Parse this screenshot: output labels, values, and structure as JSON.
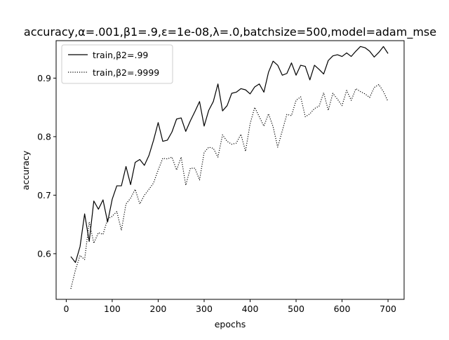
{
  "chart_data": {
    "type": "line",
    "title": "accuracy,α=.001,β1=.9,ε=1e-08,λ=.0,batchsize=500,model=adam_mse",
    "xlabel": "epochs",
    "ylabel": "accuracy",
    "xlim": [
      -22,
      735
    ],
    "ylim": [
      0.522,
      0.964
    ],
    "xticks": [
      0,
      100,
      200,
      300,
      400,
      500,
      600,
      700
    ],
    "yticks": [
      0.6,
      0.7,
      0.8,
      0.9
    ],
    "xtick_labels": [
      "0",
      "100",
      "200",
      "300",
      "400",
      "500",
      "600",
      "700"
    ],
    "ytick_labels": [
      "0.6",
      "0.7",
      "0.8",
      "0.9"
    ],
    "grid": false,
    "legend_position": "top-left",
    "x": [
      10,
      20,
      30,
      40,
      50,
      60,
      70,
      80,
      90,
      100,
      110,
      120,
      130,
      140,
      150,
      160,
      170,
      180,
      190,
      200,
      210,
      220,
      230,
      240,
      250,
      260,
      270,
      280,
      290,
      300,
      310,
      320,
      330,
      340,
      350,
      360,
      370,
      380,
      390,
      400,
      410,
      420,
      430,
      440,
      450,
      460,
      470,
      480,
      490,
      500,
      510,
      520,
      530,
      540,
      550,
      560,
      570,
      580,
      590,
      600,
      610,
      620,
      630,
      640,
      650,
      660,
      670,
      680,
      690,
      700
    ],
    "series": [
      {
        "name": "train,β2=.99",
        "style": "solid",
        "color": "#000000",
        "values": [
          0.595,
          0.585,
          0.612,
          0.668,
          0.621,
          0.69,
          0.676,
          0.692,
          0.654,
          0.693,
          0.716,
          0.716,
          0.749,
          0.718,
          0.756,
          0.761,
          0.751,
          0.768,
          0.794,
          0.824,
          0.792,
          0.794,
          0.808,
          0.83,
          0.832,
          0.809,
          0.827,
          0.843,
          0.86,
          0.818,
          0.845,
          0.86,
          0.89,
          0.844,
          0.853,
          0.874,
          0.876,
          0.882,
          0.88,
          0.873,
          0.885,
          0.89,
          0.876,
          0.91,
          0.929,
          0.922,
          0.905,
          0.908,
          0.926,
          0.905,
          0.922,
          0.92,
          0.897,
          0.922,
          0.915,
          0.907,
          0.93,
          0.938,
          0.94,
          0.937,
          0.943,
          0.937,
          0.946,
          0.954,
          0.952,
          0.946,
          0.936,
          0.944,
          0.954,
          0.942
        ]
      },
      {
        "name": "train,β2=.9999",
        "style": "dotted",
        "color": "#000000",
        "values": [
          0.54,
          0.572,
          0.597,
          0.59,
          0.654,
          0.618,
          0.636,
          0.633,
          0.659,
          0.664,
          0.672,
          0.64,
          0.685,
          0.695,
          0.71,
          0.685,
          0.7,
          0.71,
          0.721,
          0.743,
          0.763,
          0.762,
          0.765,
          0.743,
          0.765,
          0.717,
          0.746,
          0.746,
          0.726,
          0.773,
          0.782,
          0.78,
          0.765,
          0.803,
          0.792,
          0.787,
          0.789,
          0.804,
          0.775,
          0.822,
          0.85,
          0.834,
          0.818,
          0.839,
          0.817,
          0.782,
          0.81,
          0.838,
          0.836,
          0.862,
          0.868,
          0.834,
          0.839,
          0.848,
          0.852,
          0.875,
          0.845,
          0.874,
          0.864,
          0.853,
          0.879,
          0.862,
          0.882,
          0.877,
          0.873,
          0.867,
          0.884,
          0.889,
          0.877,
          0.86
        ]
      }
    ]
  }
}
